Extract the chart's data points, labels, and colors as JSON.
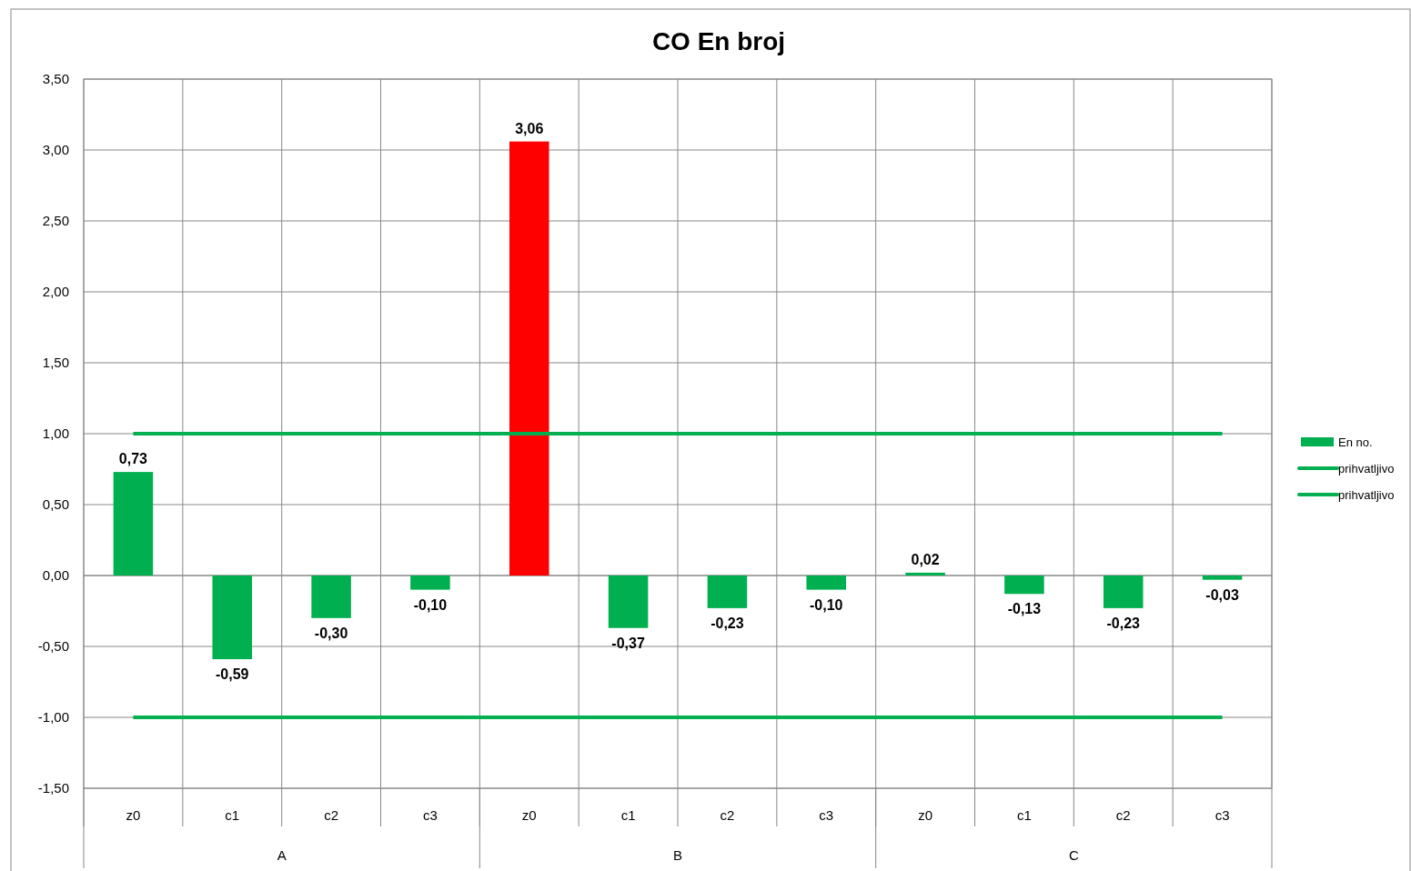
{
  "chart_data": {
    "type": "bar",
    "title": "CO En broj",
    "categories": [
      "z0",
      "c1",
      "c2",
      "c3",
      "z0",
      "c1",
      "c2",
      "c3",
      "z0",
      "c1",
      "c2",
      "c3"
    ],
    "annotations": [
      "A",
      "B",
      "C"
    ],
    "series": [
      {
        "name": "En no.",
        "color": "#00b050",
        "colors": [
          "#00b050",
          "#00b050",
          "#00b050",
          "#00b050",
          "#ff0000",
          "#00b050",
          "#00b050",
          "#00b050",
          "#00b050",
          "#00b050",
          "#00b050",
          "#00b050"
        ],
        "values": [
          0.73,
          -0.59,
          -0.3,
          -0.1,
          3.06,
          -0.37,
          -0.23,
          -0.1,
          0.02,
          -0.13,
          -0.23,
          -0.03
        ],
        "value_labels": [
          "0,73",
          "-0,59",
          "-0,30",
          "-0,10",
          "3,06",
          "-0,37",
          "-0,23",
          "-0,10",
          "0,02",
          "-0,13",
          "-0,23",
          "-0,03"
        ]
      },
      {
        "name": "prihvatljivo",
        "type": "line",
        "color": "#00b050",
        "values": [
          1,
          1,
          1,
          1,
          1,
          1,
          1,
          1,
          1,
          1,
          1,
          1
        ]
      },
      {
        "name": "prihvatljivo",
        "type": "line",
        "color": "#00b050",
        "values": [
          -1,
          -1,
          -1,
          -1,
          -1,
          -1,
          -1,
          -1,
          -1,
          -1,
          -1,
          -1
        ]
      }
    ],
    "ylim": [
      -1.5,
      3.5
    ],
    "yticks": [
      {
        "value": -1.5,
        "label": "-1,50"
      },
      {
        "value": -1,
        "label": "-1,00"
      },
      {
        "value": -0.5,
        "label": "-0,50"
      },
      {
        "value": 0,
        "label": "0,00"
      },
      {
        "value": 0.5,
        "label": "0,50"
      },
      {
        "value": 1,
        "label": "1,00"
      },
      {
        "value": 1.5,
        "label": "1,50"
      },
      {
        "value": 2,
        "label": "2,00"
      },
      {
        "value": 2.5,
        "label": "2,50"
      },
      {
        "value": 3,
        "label": "3,00"
      },
      {
        "value": 3.5,
        "label": "3,50"
      }
    ],
    "grid": true,
    "legend": "right"
  }
}
